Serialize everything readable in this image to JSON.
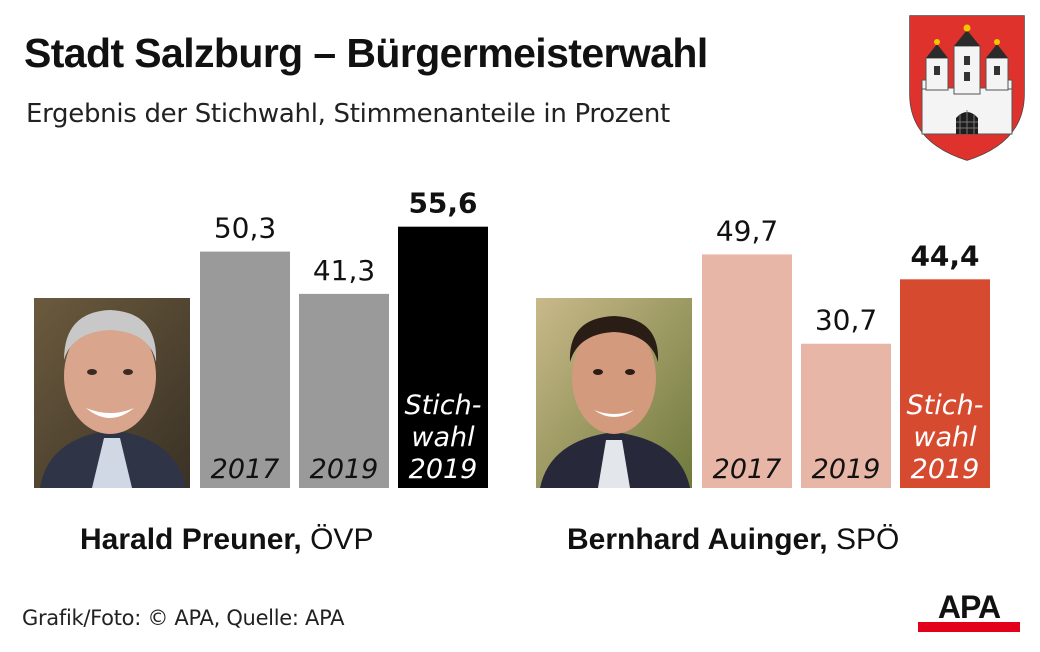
{
  "header": {
    "title": "Stadt Salzburg – Bürgermeisterwahl",
    "subtitle": "Ergebnis der Stichwahl, Stimmenanteile in Prozent"
  },
  "footer": {
    "credit": "Grafik/Foto: © APA, Quelle: APA"
  },
  "logo": {
    "text": "APA",
    "color": "#e2001a"
  },
  "colors": {
    "ovp_regular": "#9a9a9a",
    "ovp_highlight": "#000000",
    "spo_regular": "#e8b6a6",
    "spo_highlight": "#d64a30"
  },
  "chart_data": [
    {
      "type": "bar",
      "candidate": "Harald Preuner",
      "party": "ÖVP",
      "categories": [
        "2017",
        "2019",
        "Stich-wahl 2019"
      ],
      "values": [
        50.3,
        41.3,
        55.6
      ],
      "value_labels": [
        "50,3",
        "41,3",
        "55,6"
      ],
      "ylim": [
        0,
        60
      ],
      "highlight_index": 2
    },
    {
      "type": "bar",
      "candidate": "Bernhard Auinger",
      "party": "SPÖ",
      "categories": [
        "2017",
        "2019",
        "Stich-wahl 2019"
      ],
      "values": [
        49.7,
        30.7,
        44.4
      ],
      "value_labels": [
        "49,7",
        "30,7",
        "44,4"
      ],
      "ylim": [
        0,
        60
      ],
      "highlight_index": 2
    }
  ]
}
